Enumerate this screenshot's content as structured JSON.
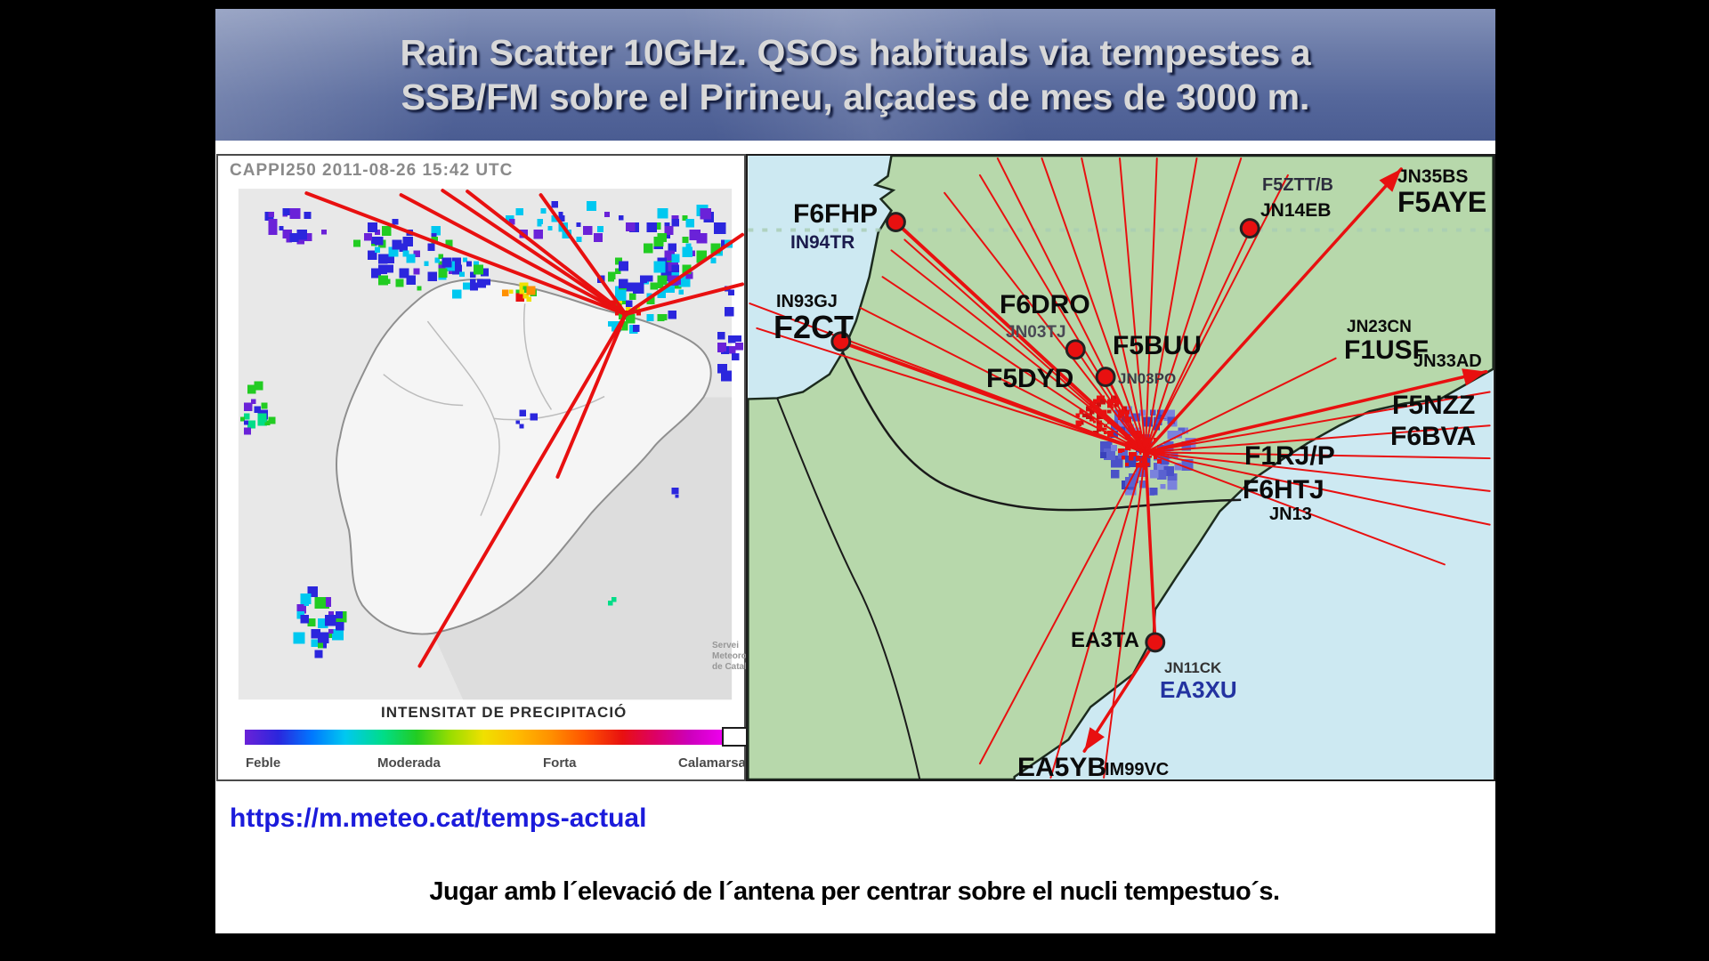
{
  "title": {
    "line1": "Rain Scatter 10GHz. QSOs habituals via tempestes a",
    "line2": "SSB/FM sobre el Pirineu, alçades de mes de 3000 m."
  },
  "radar": {
    "header": "CAPPI250 2011-08-26 15:42 UTC",
    "credit": [
      "Servei",
      "Meteorològic",
      "de Catalunya"
    ],
    "legend": {
      "title": "INTENSITAT DE PRECIPITACIÓ",
      "labels": [
        "Feble",
        "Moderada",
        "Forta",
        "Calamarsa"
      ],
      "scale_colors": [
        "#6a22d8",
        "#2b26dd",
        "#0077ff",
        "#00c8f0",
        "#00dd88",
        "#22cc22",
        "#99dd00",
        "#f0e000",
        "#ffbb00",
        "#ff9000",
        "#ff5500",
        "#e81010",
        "#dd0066",
        "#cc00bb",
        "#ee00ee"
      ]
    }
  },
  "qso_map": {
    "line_color": "#e81010",
    "marker_color": "#e81010",
    "sea_color": "#cde9f2",
    "land_color": "#b7d8ab",
    "labels": {
      "f6fhp": "F6FHP",
      "in94tr": "IN94TR",
      "in93gj": "IN93GJ",
      "f2ct": "F2CT",
      "f6dro": "F6DRO",
      "jn03tj": "JN03TJ",
      "f5buu": "F5BUU",
      "f5dyd": "F5DYD",
      "jn03po": "JN03PO",
      "f5ztt": "F5ZTT/B",
      "jn14eb": "JN14EB",
      "jn35bs": "JN35BS",
      "f5aye": "F5AYE",
      "jn23cn": "JN23CN",
      "f1usf": "F1USF",
      "jn33ad": "JN33AD",
      "f5nzz": "F5NZZ",
      "f6bva": "F6BVA",
      "f1rj": "F1RJ/P",
      "f6htj": "F6HTJ",
      "jn13": "JN13",
      "ea3ta": "EA3TA",
      "jn11ck": "JN11CK",
      "ea3xu": "EA3XU",
      "ea5yb": "EA5YB",
      "im99vc": "IM99VC"
    }
  },
  "link_url": "https://m.meteo.cat/temps-actual",
  "caption": "Jugar amb l´elevació de l´antena per centrar sobre el nucli  tempestuo´s."
}
